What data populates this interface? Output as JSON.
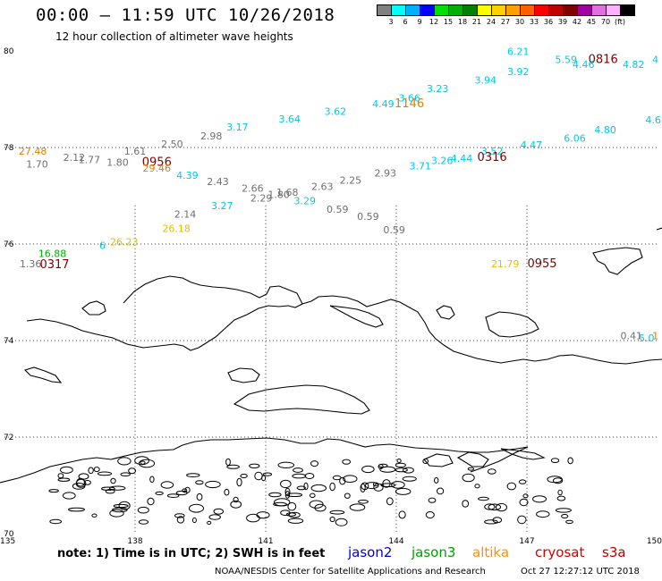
{
  "header": {
    "title": "00:00 – 11:59 UTC 10/26/2018",
    "subtitle": "12 hour collection of altimeter wave heights"
  },
  "legend": {
    "colors": [
      "#808080",
      "#00ffff",
      "#00b0ff",
      "#0000ff",
      "#00e000",
      "#00b000",
      "#008000",
      "#ffff00",
      "#ffd000",
      "#ffa000",
      "#ff6000",
      "#ff0000",
      "#c00000",
      "#800000",
      "#a000a0",
      "#e070e0",
      "#ffb0ff",
      "#000000"
    ],
    "labels": [
      "3",
      "6",
      "9",
      "12",
      "15",
      "18",
      "21",
      "24",
      "27",
      "30",
      "33",
      "36",
      "39",
      "42",
      "45",
      "70",
      "(ft)"
    ]
  },
  "axes": {
    "lat_labels": [
      "80",
      "78",
      "76",
      "74",
      "72",
      "70"
    ],
    "lon_labels": [
      "135",
      "138",
      "141",
      "144",
      "147",
      "150"
    ]
  },
  "observations": [
    {
      "text": "6.21",
      "color": "#00c8e8",
      "lon": 146.8,
      "lat": 79.92
    },
    {
      "text": "5.59",
      "color": "#00c8e8",
      "lon": 147.9,
      "lat": 79.75
    },
    {
      "text": "0816",
      "color": "#800000",
      "lon": 148.75,
      "lat": 79.75,
      "kind": "time"
    },
    {
      "text": "4",
      "color": "#00c8e8",
      "lon": 149.95,
      "lat": 79.75
    },
    {
      "text": "4.46",
      "color": "#00c8e8",
      "lon": 148.3,
      "lat": 79.65
    },
    {
      "text": "4.82",
      "color": "#00c8e8",
      "lon": 149.45,
      "lat": 79.65
    },
    {
      "text": "3.92",
      "color": "#00c8e8",
      "lon": 146.8,
      "lat": 79.5
    },
    {
      "text": "3.94",
      "color": "#00c8e8",
      "lon": 146.05,
      "lat": 79.32
    },
    {
      "text": "3.23",
      "color": "#00c8e8",
      "lon": 144.95,
      "lat": 79.15
    },
    {
      "text": "3.66",
      "color": "#00c8e8",
      "lon": 144.3,
      "lat": 78.95
    },
    {
      "text": "4.49",
      "color": "#00c8e8",
      "lon": 143.7,
      "lat": 78.83
    },
    {
      "text": "1146",
      "color": "#e08000",
      "lon": 144.3,
      "lat": 78.83,
      "kind": "time"
    },
    {
      "text": "3.62",
      "color": "#00c8e8",
      "lon": 142.6,
      "lat": 78.68
    },
    {
      "text": "3.64",
      "color": "#00c8e8",
      "lon": 141.55,
      "lat": 78.52
    },
    {
      "text": "3.17",
      "color": "#00c8e8",
      "lon": 140.35,
      "lat": 78.35
    },
    {
      "text": "4.6",
      "color": "#00c8e8",
      "lon": 149.9,
      "lat": 78.5
    },
    {
      "text": "4.80",
      "color": "#00c8e8",
      "lon": 148.8,
      "lat": 78.3
    },
    {
      "text": "2.98",
      "color": "#707070",
      "lon": 139.75,
      "lat": 78.17
    },
    {
      "text": "6.06",
      "color": "#00c8e8",
      "lon": 148.1,
      "lat": 78.12
    },
    {
      "text": "2.50",
      "color": "#707070",
      "lon": 138.85,
      "lat": 78.0
    },
    {
      "text": "4.47",
      "color": "#00c8e8",
      "lon": 147.1,
      "lat": 77.98
    },
    {
      "text": "27.48",
      "color": "#e08000",
      "lon": 135.65,
      "lat": 77.85
    },
    {
      "text": "1.61",
      "color": "#707070",
      "lon": 138.0,
      "lat": 77.85
    },
    {
      "text": "3.52",
      "color": "#00c8e8",
      "lon": 146.2,
      "lat": 77.85
    },
    {
      "text": "2.12",
      "color": "#707070",
      "lon": 136.6,
      "lat": 77.72
    },
    {
      "text": "1.77",
      "color": "#707070",
      "lon": 136.95,
      "lat": 77.68
    },
    {
      "text": "0316",
      "color": "#800000",
      "lon": 146.2,
      "lat": 77.72,
      "kind": "time"
    },
    {
      "text": "4.44",
      "color": "#00c8e8",
      "lon": 145.5,
      "lat": 77.7
    },
    {
      "text": "3.26",
      "color": "#00c8e8",
      "lon": 145.05,
      "lat": 77.66
    },
    {
      "text": "1.80",
      "color": "#707070",
      "lon": 137.6,
      "lat": 77.62
    },
    {
      "text": "0956",
      "color": "#800000",
      "lon": 138.5,
      "lat": 77.62,
      "kind": "time"
    },
    {
      "text": "1.70",
      "color": "#707070",
      "lon": 135.75,
      "lat": 77.58
    },
    {
      "text": "3.71",
      "color": "#00c8e8",
      "lon": 144.55,
      "lat": 77.55
    },
    {
      "text": "29.46",
      "color": "#e08000",
      "lon": 138.5,
      "lat": 77.5
    },
    {
      "text": "4.39",
      "color": "#00c8e8",
      "lon": 139.2,
      "lat": 77.35
    },
    {
      "text": "2.93",
      "color": "#707070",
      "lon": 143.75,
      "lat": 77.4
    },
    {
      "text": "2.43",
      "color": "#707070",
      "lon": 139.9,
      "lat": 77.22
    },
    {
      "text": "2.25",
      "color": "#707070",
      "lon": 142.95,
      "lat": 77.25
    },
    {
      "text": "2.63",
      "color": "#707070",
      "lon": 142.3,
      "lat": 77.12
    },
    {
      "text": "2.66",
      "color": "#707070",
      "lon": 140.7,
      "lat": 77.08
    },
    {
      "text": "1.68",
      "color": "#707070",
      "lon": 141.5,
      "lat": 77.0
    },
    {
      "text": "1.80",
      "color": "#707070",
      "lon": 141.3,
      "lat": 76.95
    },
    {
      "text": "2.29",
      "color": "#707070",
      "lon": 140.9,
      "lat": 76.88
    },
    {
      "text": "3.29",
      "color": "#00c8e8",
      "lon": 141.9,
      "lat": 76.82
    },
    {
      "text": "3.27",
      "color": "#00c8e8",
      "lon": 140.0,
      "lat": 76.72
    },
    {
      "text": "0.59",
      "color": "#707070",
      "lon": 142.65,
      "lat": 76.65
    },
    {
      "text": "2.14",
      "color": "#707070",
      "lon": 139.15,
      "lat": 76.55
    },
    {
      "text": "0.59",
      "color": "#707070",
      "lon": 143.35,
      "lat": 76.5
    },
    {
      "text": "26.18",
      "color": "#e0c000",
      "lon": 138.95,
      "lat": 76.25
    },
    {
      "text": "0.59",
      "color": "#707070",
      "lon": 143.95,
      "lat": 76.22
    },
    {
      "text": "6",
      "color": "#00c8e8",
      "lon": 137.25,
      "lat": 75.9
    },
    {
      "text": "26.23",
      "color": "#e0c000",
      "lon": 137.75,
      "lat": 75.97
    },
    {
      "text": "16.88",
      "color": "#00b000",
      "lon": 136.1,
      "lat": 75.73
    },
    {
      "text": "1.36",
      "color": "#707070",
      "lon": 135.6,
      "lat": 75.52
    },
    {
      "text": "0317",
      "color": "#800000",
      "lon": 136.15,
      "lat": 75.5,
      "kind": "time"
    },
    {
      "text": "21.79",
      "color": "#e0c000",
      "lon": 146.5,
      "lat": 75.52
    },
    {
      "text": "0955",
      "color": "#800000",
      "lon": 147.35,
      "lat": 75.52,
      "kind": "time"
    },
    {
      "text": "0.41",
      "color": "#707070",
      "lon": 149.4,
      "lat": 74.03
    },
    {
      "text": "1",
      "color": "#e08000",
      "lon": 149.95,
      "lat": 74.03
    },
    {
      "text": "5.0",
      "color": "#00c8e8",
      "lon": 149.75,
      "lat": 73.98
    }
  ],
  "footer": {
    "note": "note: 1) Time is in UTC; 2) SWH is in feet",
    "satellites": [
      {
        "name": "jason2",
        "color": "#0000d0"
      },
      {
        "name": "jason3",
        "color": "#00a000"
      },
      {
        "name": "altika",
        "color": "#ff9000"
      },
      {
        "name": "cryosat",
        "color": "#d00000"
      },
      {
        "name": "s3a",
        "color": "#c00000"
      }
    ],
    "credit": "NOAA/NESDIS Center for Satellite Applications and Research",
    "timestamp": "Oct 27 12:27:12 UTC 2018"
  }
}
